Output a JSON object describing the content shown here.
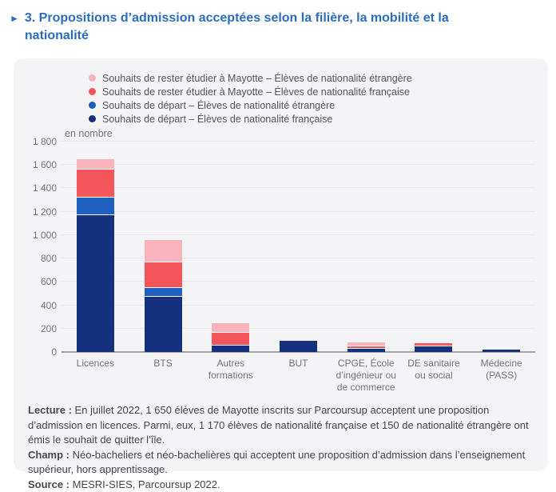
{
  "title": {
    "marker": "►",
    "text": "3. Propositions d’admission acceptées selon la filière, la mobilité et la nationalité"
  },
  "legend": [
    {
      "label": "Souhaits de rester étudier à Mayotte – Élèves de nationalité étrangère",
      "color": "#f9b4bb"
    },
    {
      "label": "Souhaits de rester étudier à Mayotte – Élèves de nationalité française",
      "color": "#f4555b"
    },
    {
      "label": "Souhaits de départ – Élèves de nationalité étrangère",
      "color": "#1e5fc2"
    },
    {
      "label": "Souhaits de départ – Élèves de nationalité française",
      "color": "#15317e"
    }
  ],
  "chart_data": {
    "type": "bar",
    "stacked": true,
    "unit_label": "en nombre",
    "grid": true,
    "legend_position": "top",
    "ylim": [
      0,
      1800
    ],
    "y_ticks": [
      {
        "label": "0",
        "value": 0
      },
      {
        "label": "200",
        "value": 200
      },
      {
        "label": "400",
        "value": 400
      },
      {
        "label": "600",
        "value": 600
      },
      {
        "label": "800",
        "value": 800
      },
      {
        "label": "1 000",
        "value": 1000
      },
      {
        "label": "1 200",
        "value": 1200
      },
      {
        "label": "1 400",
        "value": 1400
      },
      {
        "label": "1 600",
        "value": 1600
      },
      {
        "label": "1 800",
        "value": 1800
      }
    ],
    "categories": [
      "Licences",
      "BTS",
      "Autres formations",
      "BUT",
      "CPGE, École d’ingénieur ou de commerce",
      "DE sanitaire ou social",
      "Médecine (PASS)"
    ],
    "series": [
      {
        "name": "Souhaits de départ – Élèves de nationalité française",
        "color": "#15317e",
        "values": [
          1170,
          470,
          55,
          95,
          25,
          50,
          20
        ]
      },
      {
        "name": "Souhaits de départ – Élèves de nationalité étrangère",
        "color": "#1e5fc2",
        "values": [
          150,
          75,
          0,
          0,
          0,
          0,
          0
        ]
      },
      {
        "name": "Souhaits de rester étudier à Mayotte – Élèves de nationalité française",
        "color": "#f4555b",
        "values": [
          240,
          220,
          110,
          0,
          25,
          25,
          0
        ]
      },
      {
        "name": "Souhaits de rester étudier à Mayotte – Élèves de nationalité étrangère",
        "color": "#f9b4bb",
        "values": [
          90,
          190,
          80,
          0,
          30,
          10,
          0
        ]
      }
    ]
  },
  "notes": [
    {
      "label": "Lecture :",
      "text": "En juillet 2022, 1 650 élèves de Mayotte inscrits sur Parcoursup acceptent une proposition d’admission en licences. Parmi, eux, 1 170 élèves de nationalité française et 150 de nationalité étrangère ont émis le souhait de quitter l’île."
    },
    {
      "label": "Champ :",
      "text": "Néo-bacheliers et néo-bachelières qui acceptent une proposition d’admission dans l’enseignement supérieur, hors apprentissage."
    },
    {
      "label": "Source :",
      "text": "MESRI-SIES, Parcoursup 2022."
    }
  ]
}
